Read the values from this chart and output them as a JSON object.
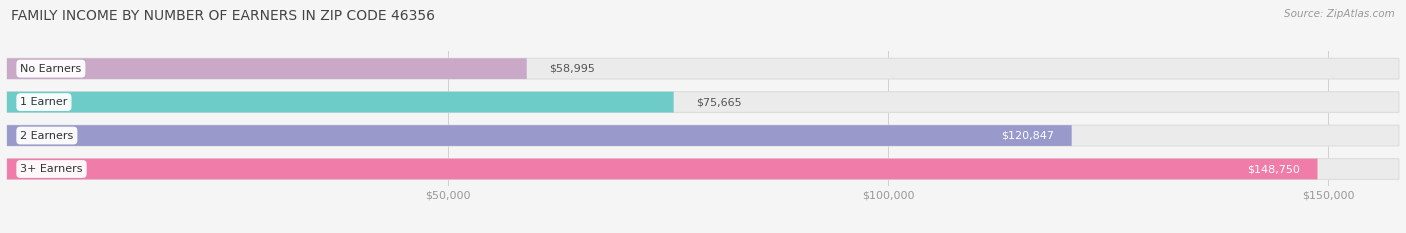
{
  "title": "FAMILY INCOME BY NUMBER OF EARNERS IN ZIP CODE 46356",
  "source": "Source: ZipAtlas.com",
  "categories": [
    "No Earners",
    "1 Earner",
    "2 Earners",
    "3+ Earners"
  ],
  "values": [
    58995,
    75665,
    120847,
    148750
  ],
  "bar_colors": [
    "#c9a8c8",
    "#6dcbc8",
    "#9999cc",
    "#f07caa"
  ],
  "value_label_inside": [
    false,
    false,
    true,
    true
  ],
  "value_labels": [
    "$58,995",
    "$75,665",
    "$120,847",
    "$148,750"
  ],
  "xlim_max": 158000,
  "xticks": [
    50000,
    100000,
    150000
  ],
  "xtick_labels": [
    "$50,000",
    "$100,000",
    "$150,000"
  ],
  "background_color": "#f5f5f5",
  "bar_bg_color": "#ebebeb",
  "bar_border_color": "#dddddd",
  "title_fontsize": 10,
  "source_fontsize": 7.5,
  "label_fontsize": 8,
  "value_fontsize": 8,
  "tick_fontsize": 8
}
